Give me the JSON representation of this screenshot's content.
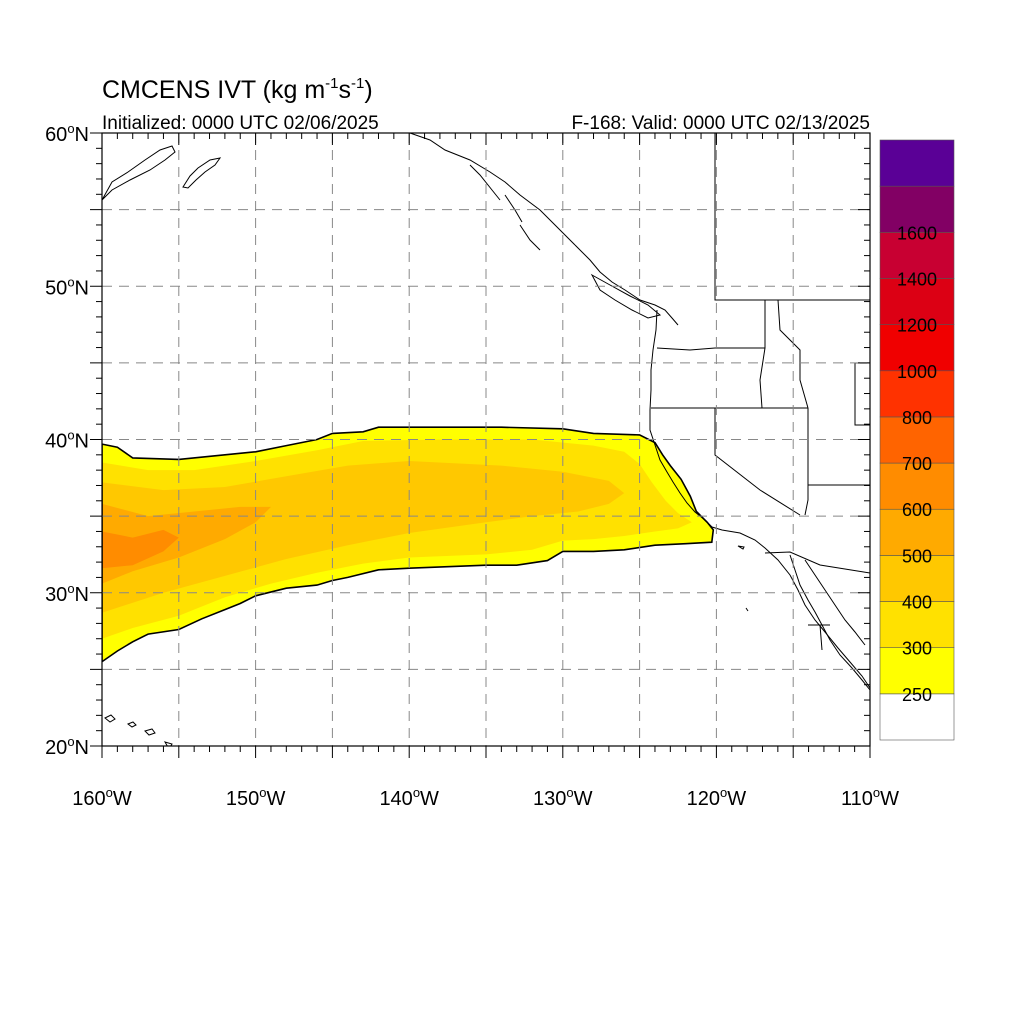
{
  "title": {
    "main": "CMCENS IVT (kg m",
    "sup1": "-1",
    "mid": "s",
    "sup2": "-1",
    "end": ")"
  },
  "initialized": "Initialized: 0000 UTC 02/06/2025",
  "valid": "F-168: Valid: 0000 UTC 02/13/2025",
  "deg": "o",
  "map": {
    "lon_range": [
      -160,
      -110
    ],
    "lat_range": [
      20,
      60
    ],
    "grid_lons": [
      -155,
      -150,
      -145,
      -140,
      -135,
      -130,
      -125,
      -120,
      -115
    ],
    "grid_lats": [
      25,
      30,
      35,
      40,
      45,
      50,
      55
    ],
    "lon_ticks": [
      {
        "lon": -160,
        "num": "160",
        "hemi": "W"
      },
      {
        "lon": -150,
        "num": "150",
        "hemi": "W"
      },
      {
        "lon": -140,
        "num": "140",
        "hemi": "W"
      },
      {
        "lon": -130,
        "num": "130",
        "hemi": "W"
      },
      {
        "lon": -120,
        "num": "120",
        "hemi": "W"
      },
      {
        "lon": -110,
        "num": "110",
        "hemi": "W"
      }
    ],
    "lat_ticks": [
      {
        "lat": 60,
        "num": "60",
        "hemi": "N"
      },
      {
        "lat": 50,
        "num": "50",
        "hemi": "N"
      },
      {
        "lat": 40,
        "num": "40",
        "hemi": "N"
      },
      {
        "lat": 30,
        "num": "30",
        "hemi": "N"
      },
      {
        "lat": 20,
        "num": "20",
        "hemi": "N"
      }
    ]
  },
  "colorbar": {
    "colors": [
      "#ffffff",
      "#ffff00",
      "#ffe100",
      "#ffc800",
      "#ffaa00",
      "#ff8c00",
      "#ff6400",
      "#ff3200",
      "#f00000",
      "#dc0014",
      "#c80032",
      "#820064",
      "#5a0096"
    ],
    "labels": [
      "250",
      "300",
      "400",
      "500",
      "600",
      "700",
      "800",
      "1000",
      "1200",
      "1400",
      "1600"
    ]
  },
  "field": {
    "units": "kg m-1 s-1",
    "contour_threshold": 250,
    "levels": [
      250,
      300,
      400,
      500,
      600
    ],
    "level_colors": [
      "#ffff00",
      "#ffe100",
      "#ffc800",
      "#ffaa00",
      "#ff8c00"
    ],
    "outline_250": [
      [
        -160,
        39.7
      ],
      [
        -159,
        39.5
      ],
      [
        -158,
        38.8
      ],
      [
        -155,
        38.7
      ],
      [
        -152,
        39.0
      ],
      [
        -150,
        39.2
      ],
      [
        -148,
        39.6
      ],
      [
        -146,
        40.0
      ],
      [
        -145,
        40.4
      ],
      [
        -143,
        40.5
      ],
      [
        -142,
        40.8
      ],
      [
        -138,
        40.8
      ],
      [
        -134,
        40.8
      ],
      [
        -130,
        40.7
      ],
      [
        -128,
        40.4
      ],
      [
        -125,
        40.3
      ],
      [
        -124,
        39.8
      ],
      [
        -123.5,
        39.0
      ],
      [
        -123,
        38.3
      ],
      [
        -122.3,
        37.4
      ],
      [
        -121.7,
        36.3
      ],
      [
        -121.3,
        35.3
      ],
      [
        -120.6,
        34.6
      ],
      [
        -120.2,
        34.1
      ],
      [
        -120.3,
        33.3
      ],
      [
        -122,
        33.2
      ],
      [
        -124,
        33.1
      ],
      [
        -126,
        32.8
      ],
      [
        -128,
        32.7
      ],
      [
        -130,
        32.7
      ],
      [
        -131,
        32.1
      ],
      [
        -133,
        31.8
      ],
      [
        -135,
        31.8
      ],
      [
        -140,
        31.6
      ],
      [
        -142,
        31.5
      ],
      [
        -144,
        31.0
      ],
      [
        -145,
        30.8
      ],
      [
        -146,
        30.5
      ],
      [
        -148,
        30.3
      ],
      [
        -150,
        29.8
      ],
      [
        -151,
        29.3
      ],
      [
        -152,
        28.9
      ],
      [
        -153.5,
        28.3
      ],
      [
        -155,
        27.6
      ],
      [
        -157,
        27.3
      ],
      [
        -158,
        26.8
      ],
      [
        -159,
        26.2
      ],
      [
        -160,
        25.5
      ]
    ],
    "outline_300": [
      [
        -160,
        38.5
      ],
      [
        -157,
        38.0
      ],
      [
        -154,
        38.0
      ],
      [
        -150,
        38.6
      ],
      [
        -146,
        39.3
      ],
      [
        -143,
        39.9
      ],
      [
        -138,
        40.0
      ],
      [
        -132,
        40.0
      ],
      [
        -128,
        39.6
      ],
      [
        -126,
        39.2
      ],
      [
        -125,
        38.4
      ],
      [
        -124.2,
        37.2
      ],
      [
        -123.3,
        36.0
      ],
      [
        -122.5,
        35.2
      ],
      [
        -121.6,
        34.6
      ],
      [
        -122.5,
        34.2
      ],
      [
        -124,
        34.0
      ],
      [
        -126,
        33.7
      ],
      [
        -128,
        33.5
      ],
      [
        -130,
        33.4
      ],
      [
        -132,
        32.8
      ],
      [
        -135,
        32.5
      ],
      [
        -140,
        32.3
      ],
      [
        -143,
        31.9
      ],
      [
        -146,
        31.3
      ],
      [
        -149,
        30.6
      ],
      [
        -152,
        29.7
      ],
      [
        -155,
        28.5
      ],
      [
        -158,
        27.7
      ],
      [
        -160,
        27.0
      ]
    ],
    "outline_400": [
      [
        -160,
        37.2
      ],
      [
        -156,
        36.7
      ],
      [
        -152,
        36.9
      ],
      [
        -148,
        37.6
      ],
      [
        -144,
        38.3
      ],
      [
        -140,
        38.6
      ],
      [
        -134,
        38.3
      ],
      [
        -130,
        37.9
      ],
      [
        -127,
        37.3
      ],
      [
        -126,
        36.5
      ],
      [
        -127,
        35.8
      ],
      [
        -129,
        35.3
      ],
      [
        -132,
        35.0
      ],
      [
        -135,
        34.6
      ],
      [
        -140,
        33.9
      ],
      [
        -144,
        33.1
      ],
      [
        -148,
        32.2
      ],
      [
        -152,
        31.1
      ],
      [
        -156,
        30.0
      ],
      [
        -160,
        28.7
      ]
    ],
    "outline_500": [
      [
        -160,
        35.8
      ],
      [
        -157,
        35.0
      ],
      [
        -154,
        35.3
      ],
      [
        -151,
        35.6
      ],
      [
        -149,
        35.6
      ],
      [
        -150,
        34.6
      ],
      [
        -152,
        33.5
      ],
      [
        -155,
        32.3
      ],
      [
        -158,
        31.4
      ],
      [
        -160,
        30.6
      ]
    ],
    "outline_600": [
      [
        -160,
        34.0
      ],
      [
        -158,
        33.6
      ],
      [
        -156,
        34.1
      ],
      [
        -155,
        33.6
      ],
      [
        -156,
        32.7
      ],
      [
        -158,
        31.8
      ],
      [
        -160,
        31.6
      ]
    ]
  }
}
